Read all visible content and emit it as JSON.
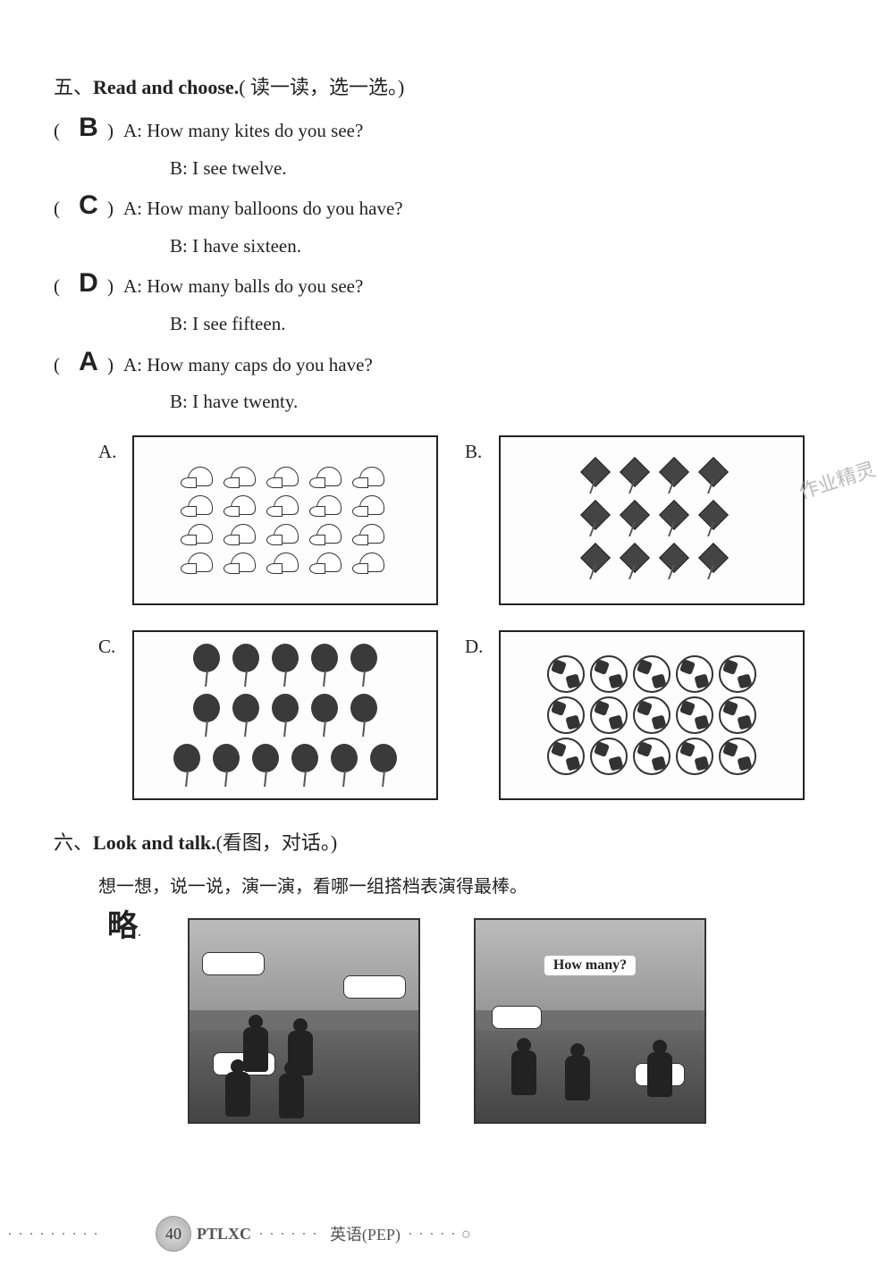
{
  "section5": {
    "title_cn_prefix": "五、",
    "title_en": "Read and choose.",
    "title_cn_suffix": "( 读一读，选一选。)",
    "questions": [
      {
        "answer": "B",
        "lineA": "A: How many kites do you see?",
        "lineB": "B: I see twelve."
      },
      {
        "answer": "C",
        "lineA": "A: How many balloons do you have?",
        "lineB": "B: I have sixteen."
      },
      {
        "answer": "D",
        "lineA": "A: How many balls do you see?",
        "lineB": "B: I see fifteen."
      },
      {
        "answer": "A",
        "lineA": "A: How many caps do you have?",
        "lineB": "B: I have twenty."
      }
    ],
    "options": [
      {
        "label": "A.",
        "item": "caps",
        "rows": [
          5,
          5,
          5,
          5
        ],
        "icon": "cap"
      },
      {
        "label": "B.",
        "item": "kites",
        "rows": [
          4,
          4,
          4
        ],
        "icon": "kite"
      },
      {
        "label": "C.",
        "item": "balloons",
        "rows": [
          5,
          5,
          6
        ],
        "icon": "balloon"
      },
      {
        "label": "D.",
        "item": "balls",
        "rows": [
          5,
          5,
          5
        ],
        "icon": "ball"
      }
    ]
  },
  "watermark_text": "作业精灵",
  "section6": {
    "title_cn_prefix": "六、",
    "title_en": "Look and talk.",
    "title_cn_suffix": "(看图，对话。)",
    "subtitle": "想一想，说一说，演一演，看哪一组搭档表演得最棒。",
    "answer_note": "略",
    "scene2_tag": "How many?"
  },
  "footer": {
    "page_number": "40",
    "brand": "PTLXC",
    "subject": "英语(PEP)"
  },
  "colors": {
    "text": "#222222",
    "border": "#222222",
    "watermark": "#bcbcbc",
    "footer_text": "#555555"
  }
}
